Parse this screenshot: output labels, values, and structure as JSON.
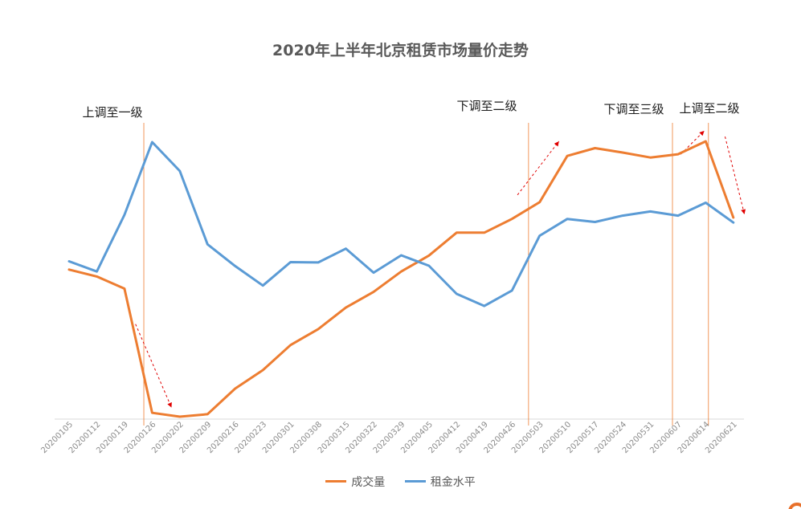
{
  "chart_data": {
    "type": "line",
    "title": "2020年上半年北京租赁市场量价走势",
    "xlabel": "",
    "ylabel": "",
    "grid": false,
    "legend_position": "bottom",
    "x": [
      "20200105",
      "20200112",
      "20200119",
      "20200126",
      "20200202",
      "20200209",
      "20200216",
      "20200223",
      "20200301",
      "20200308",
      "20200315",
      "20200322",
      "20200329",
      "20200405",
      "20200412",
      "20200419",
      "20200426",
      "20200503",
      "20200510",
      "20200517",
      "20200524",
      "20200531",
      "20200607",
      "20200614",
      "20200621"
    ],
    "series": [
      {
        "name": "成交量",
        "color": "#ed7d31",
        "values": [
          53.7,
          51.2,
          46.8,
          1.7,
          0.3,
          1.2,
          10.5,
          17.2,
          26.3,
          32.1,
          39.9,
          45.6,
          53.0,
          58.8,
          67.1,
          67.1,
          72.1,
          78.2,
          95.0,
          97.8,
          96.2,
          94.4,
          95.6,
          100.3,
          72.6
        ]
      },
      {
        "name": "租金水平",
        "color": "#5b9bd5",
        "values": [
          56.7,
          53.0,
          73.6,
          100.0,
          89.5,
          62.9,
          55.0,
          47.9,
          56.4,
          56.3,
          61.3,
          52.6,
          58.9,
          55.1,
          44.9,
          40.5,
          46.1,
          66.0,
          72.1,
          71.0,
          73.3,
          74.8,
          73.3,
          78.0,
          70.8
        ]
      }
    ],
    "annotations": [
      {
        "label": "上调至一级",
        "at_index": 2.7
      },
      {
        "label": "下调至二级",
        "at_index": 16.6
      },
      {
        "label": "下调至三级",
        "at_index": 21.8
      },
      {
        "label": "上调至二级",
        "at_index": 23.1
      }
    ],
    "trend_arrows": [
      {
        "from": [
          2.4,
          33.9
        ],
        "to": [
          3.7,
          3.6
        ]
      },
      {
        "from": [
          16.2,
          80.8
        ],
        "to": [
          17.7,
          100.3
        ]
      },
      {
        "from": [
          22.1,
          95.6
        ],
        "to": [
          22.95,
          104.1
        ]
      },
      {
        "from": [
          23.7,
          102.0
        ],
        "to": [
          24.4,
          73.8
        ]
      }
    ],
    "marker_lines_at_index": [
      2.7,
      16.6,
      21.8,
      23.1
    ]
  },
  "legend_icon": "orange-logo-arc-icon"
}
